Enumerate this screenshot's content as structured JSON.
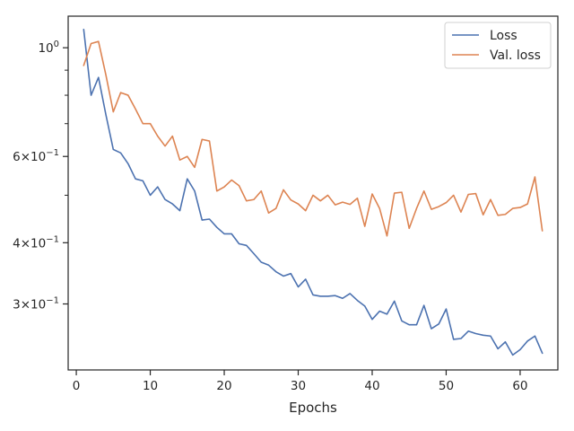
{
  "chart_data": {
    "type": "line",
    "title": "",
    "xlabel": "Epochs",
    "ylabel": "",
    "xlim": [
      -1.1,
      65.1
    ],
    "ylim": [
      0.22,
      1.16
    ],
    "yscale": "log",
    "grid": false,
    "legend_position": "top-right",
    "x_ticks": [
      0,
      10,
      20,
      30,
      40,
      50,
      60
    ],
    "x_tick_labels": [
      "0",
      "10",
      "20",
      "30",
      "40",
      "50",
      "60"
    ],
    "y_major_ticks": [
      {
        "value": 1.0,
        "label": "10^0",
        "mantissa": "",
        "exponent": "0"
      },
      {
        "value": 0.6,
        "label": "6×10^−1",
        "mantissa": "6",
        "exponent": "−1"
      },
      {
        "value": 0.4,
        "label": "4×10^−1",
        "mantissa": "4",
        "exponent": "−1"
      },
      {
        "value": 0.3,
        "label": "3×10^−1",
        "mantissa": "3",
        "exponent": "−1"
      }
    ],
    "y_minor_ticks": [
      0.9,
      0.8,
      0.7,
      0.5
    ],
    "x": [
      1,
      2,
      3,
      4,
      5,
      6,
      7,
      8,
      9,
      10,
      11,
      12,
      13,
      14,
      15,
      16,
      17,
      18,
      19,
      20,
      21,
      22,
      23,
      24,
      25,
      26,
      27,
      28,
      29,
      30,
      31,
      32,
      33,
      34,
      35,
      36,
      37,
      38,
      39,
      40,
      41,
      42,
      43,
      44,
      45,
      46,
      47,
      48,
      49,
      50,
      51,
      52,
      53,
      54,
      55,
      56,
      57,
      58,
      59,
      60,
      61,
      62,
      63
    ],
    "series": [
      {
        "name": "Loss",
        "color": "#4c72b0",
        "values": [
          1.09,
          0.8,
          0.87,
          0.73,
          0.62,
          0.61,
          0.58,
          0.54,
          0.535,
          0.5,
          0.52,
          0.49,
          0.48,
          0.465,
          0.54,
          0.51,
          0.445,
          0.447,
          0.43,
          0.417,
          0.417,
          0.398,
          0.395,
          0.38,
          0.365,
          0.36,
          0.349,
          0.342,
          0.346,
          0.325,
          0.337,
          0.313,
          0.311,
          0.311,
          0.312,
          0.308,
          0.315,
          0.305,
          0.297,
          0.279,
          0.29,
          0.286,
          0.304,
          0.277,
          0.272,
          0.272,
          0.298,
          0.267,
          0.273,
          0.293,
          0.254,
          0.255,
          0.264,
          0.261,
          0.259,
          0.258,
          0.243,
          0.251,
          0.236,
          0.242,
          0.252,
          0.258,
          0.238
        ]
      },
      {
        "name": "Val. loss",
        "color": "#dd8452",
        "values": [
          0.92,
          1.02,
          1.03,
          0.88,
          0.74,
          0.81,
          0.8,
          0.75,
          0.7,
          0.7,
          0.66,
          0.63,
          0.66,
          0.59,
          0.6,
          0.57,
          0.65,
          0.645,
          0.51,
          0.52,
          0.537,
          0.523,
          0.487,
          0.49,
          0.51,
          0.46,
          0.47,
          0.513,
          0.489,
          0.48,
          0.465,
          0.5,
          0.487,
          0.5,
          0.478,
          0.484,
          0.479,
          0.493,
          0.432,
          0.503,
          0.47,
          0.413,
          0.505,
          0.507,
          0.428,
          0.47,
          0.51,
          0.468,
          0.474,
          0.483,
          0.5,
          0.462,
          0.502,
          0.504,
          0.456,
          0.49,
          0.455,
          0.457,
          0.47,
          0.472,
          0.48,
          0.545,
          0.423
        ]
      }
    ]
  }
}
